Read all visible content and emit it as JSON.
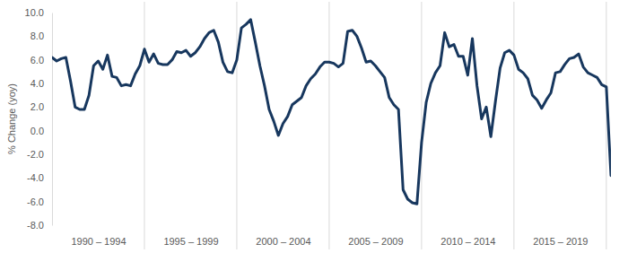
{
  "chart_data": {
    "type": "line",
    "y_label": "% Change (yoy)",
    "categories": [
      null,
      null,
      null,
      null,
      null,
      null,
      null,
      null,
      null,
      null,
      "1990 – 1994",
      null,
      null,
      null,
      null,
      null,
      null,
      null,
      null,
      null,
      null,
      null,
      null,
      null,
      null,
      null,
      null,
      null,
      null,
      null,
      "1995 – 1999",
      null,
      null,
      null,
      null,
      null,
      null,
      null,
      null,
      null,
      null,
      null,
      null,
      null,
      null,
      null,
      null,
      null,
      null,
      null,
      "2000 – 2004",
      null,
      null,
      null,
      null,
      null,
      null,
      null,
      null,
      null,
      null,
      null,
      null,
      null,
      null,
      null,
      null,
      null,
      null,
      null,
      "2005 – 2009",
      null,
      null,
      null,
      null,
      null,
      null,
      null,
      null,
      null,
      null,
      null,
      null,
      null,
      null,
      null,
      null,
      null,
      null,
      null,
      "2010 – 2014",
      null,
      null,
      null,
      null,
      null,
      null,
      null,
      null,
      null,
      null,
      null,
      null,
      null,
      null,
      null,
      null,
      null,
      null,
      null,
      "2015 – 2019",
      null,
      null,
      null,
      null,
      null,
      null,
      null,
      null,
      null,
      null,
      null
    ],
    "values": [
      6.2,
      5.9,
      6.1,
      6.2,
      4.2,
      2.0,
      1.8,
      1.8,
      3.0,
      5.5,
      5.9,
      5.2,
      6.4,
      4.6,
      4.5,
      3.8,
      3.9,
      3.8,
      4.8,
      5.5,
      6.9,
      5.8,
      6.5,
      5.7,
      5.6,
      5.6,
      6.0,
      6.7,
      6.6,
      6.8,
      6.3,
      6.6,
      7.1,
      7.8,
      8.3,
      8.5,
      7.5,
      5.8,
      5.0,
      4.9,
      6.0,
      8.7,
      9.0,
      9.4,
      7.5,
      5.5,
      3.8,
      1.8,
      0.8,
      -0.4,
      0.6,
      1.2,
      2.2,
      2.5,
      2.8,
      3.8,
      4.4,
      4.8,
      5.4,
      5.8,
      5.8,
      5.7,
      5.4,
      5.7,
      8.4,
      8.5,
      8.0,
      7.0,
      5.8,
      5.9,
      5.5,
      5.0,
      4.5,
      2.8,
      2.2,
      1.8,
      -5.0,
      -5.8,
      -6.1,
      -6.2,
      -1.0,
      2.4,
      4.0,
      4.9,
      5.5,
      8.3,
      7.1,
      7.3,
      6.3,
      6.3,
      4.7,
      7.8,
      3.8,
      1.0,
      2.0,
      -0.5,
      2.5,
      5.3,
      6.6,
      6.8,
      6.4,
      5.2,
      4.9,
      4.4,
      3.0,
      2.6,
      1.9,
      2.6,
      3.2,
      4.9,
      5.0,
      5.6,
      6.1,
      6.2,
      6.5,
      5.4,
      4.9,
      4.7,
      4.5,
      3.9,
      3.7,
      -3.8
    ],
    "color": "#17375e",
    "ylim": [
      -8,
      10
    ],
    "yticks": [
      {
        "value": -8,
        "label": "-8.0"
      },
      {
        "value": -6,
        "label": "-6.0"
      },
      {
        "value": -4,
        "label": "-4.0"
      },
      {
        "value": -2,
        "label": "-2.0"
      },
      {
        "value": 0,
        "label": "0.0"
      },
      {
        "value": 2,
        "label": "2.0"
      },
      {
        "value": 4,
        "label": "4.0"
      },
      {
        "value": 6,
        "label": "6.0"
      },
      {
        "value": 8,
        "label": "8.0"
      },
      {
        "value": 10,
        "label": "10.0"
      }
    ],
    "grid": false
  }
}
